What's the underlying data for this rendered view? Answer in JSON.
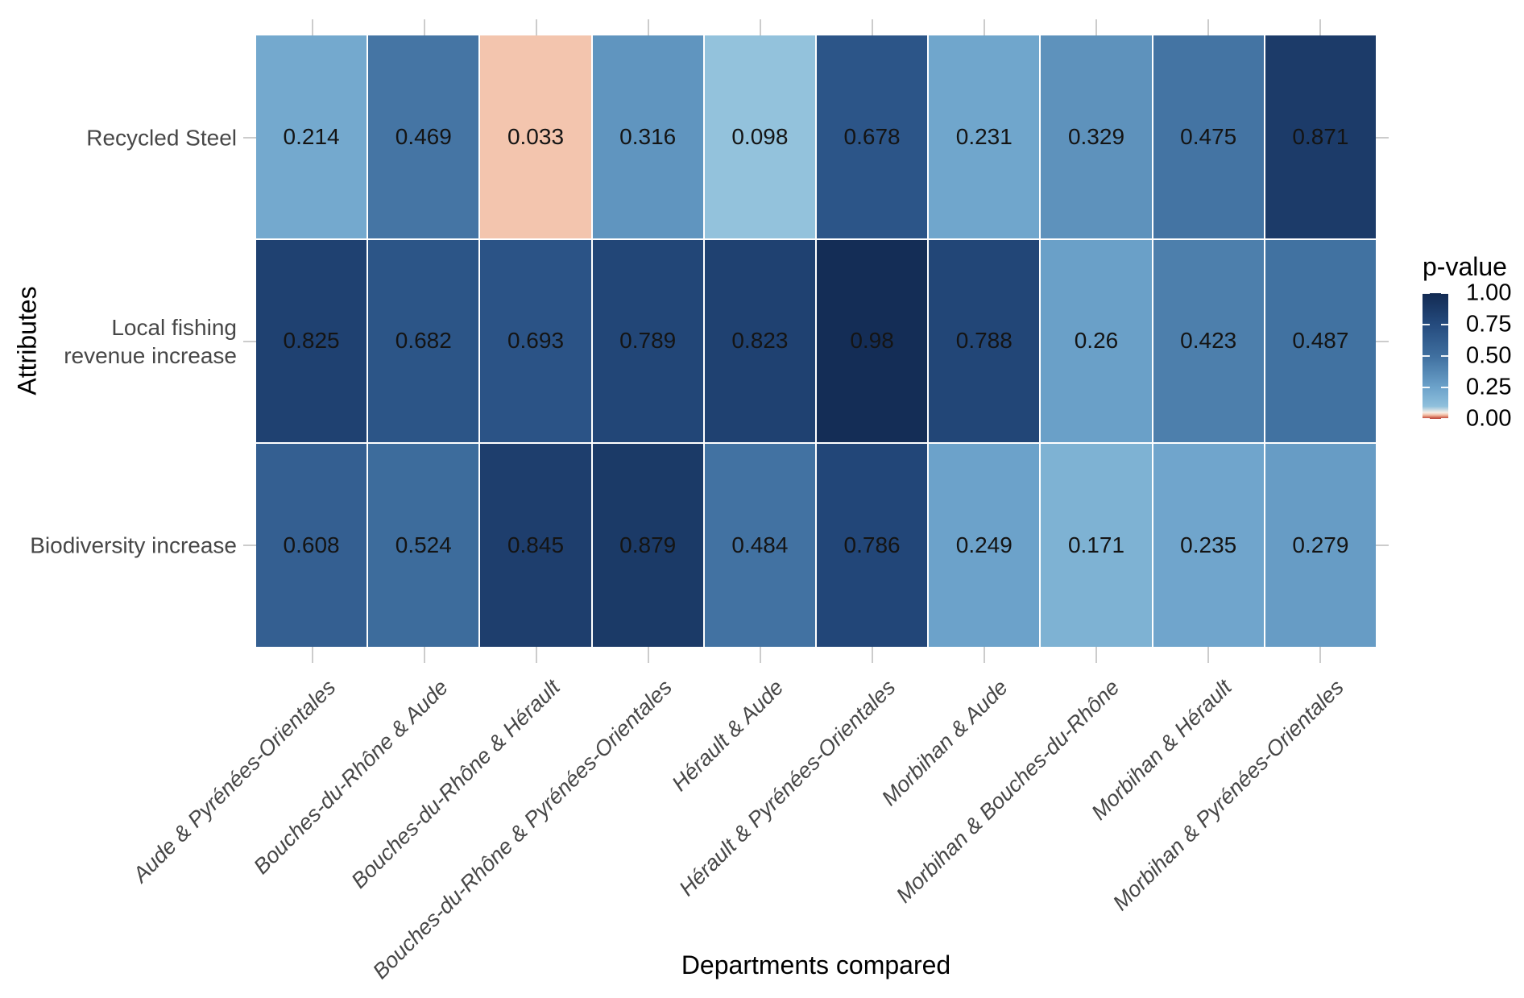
{
  "chart_data": {
    "type": "heatmap",
    "title": "",
    "xlabel": "Departments compared",
    "ylabel": "Attributes",
    "legend_title": "p-value",
    "legend_ticks": [
      "1.00",
      "0.75",
      "0.50",
      "0.25",
      "0.00"
    ],
    "legend_tick_values": [
      1.0,
      0.75,
      0.5,
      0.25,
      0.0
    ],
    "x_categories": [
      "Aude & Pyrénées-Orientales",
      "Bouches-du-Rhône & Aude",
      "Bouches-du-Rhône & Hérault",
      "Bouches-du-Rhône & Pyrénées-Orientales",
      "Hérault & Aude",
      "Hérault & Pyrénées-Orientales",
      "Morbihan & Aude",
      "Morbihan & Bouches-du-Rhône",
      "Morbihan & Hérault",
      "Morbihan & Pyrénées-Orientales"
    ],
    "y_categories": [
      "Recycled Steel",
      "Local fishing\nrevenue increase",
      "Biodiversity increase"
    ],
    "values": [
      [
        0.214,
        0.469,
        0.033,
        0.316,
        0.098,
        0.678,
        0.231,
        0.329,
        0.475,
        0.871
      ],
      [
        0.825,
        0.682,
        0.693,
        0.789,
        0.823,
        0.98,
        0.788,
        0.26,
        0.423,
        0.487
      ],
      [
        0.608,
        0.524,
        0.845,
        0.879,
        0.484,
        0.786,
        0.249,
        0.171,
        0.235,
        0.279
      ]
    ],
    "value_labels": [
      [
        "0.214",
        "0.469",
        "0.033",
        "0.316",
        "0.098",
        "0.678",
        "0.231",
        "0.329",
        "0.475",
        "0.871"
      ],
      [
        "0.825",
        "0.682",
        "0.693",
        "0.789",
        "0.823",
        "0.98",
        "0.788",
        "0.26",
        "0.423",
        "0.487"
      ],
      [
        "0.608",
        "0.524",
        "0.845",
        "0.879",
        "0.484",
        "0.786",
        "0.249",
        "0.171",
        "0.235",
        "0.279"
      ]
    ],
    "value_range": [
      0,
      1
    ],
    "grid": false,
    "legend_position": "right",
    "color_scale": {
      "type": "piecewise-linear",
      "stops": [
        {
          "v": 0.0,
          "color": "#B5392F"
        },
        {
          "v": 0.01,
          "color": "#CE6451"
        },
        {
          "v": 0.03,
          "color": "#F2BDA4"
        },
        {
          "v": 0.05,
          "color": "#F7EFE7"
        },
        {
          "v": 0.1,
          "color": "#8FC0DC"
        },
        {
          "v": 0.25,
          "color": "#6CA2CA"
        },
        {
          "v": 0.5,
          "color": "#3F6F9F"
        },
        {
          "v": 0.75,
          "color": "#254B7E"
        },
        {
          "v": 1.0,
          "color": "#122A52"
        }
      ]
    },
    "style_colors": {
      "axis_tick": "#cccccc",
      "axis_label_text": "#474747",
      "axis_title_text": "#000000",
      "cell_value_text": "#141414",
      "background": "#ffffff"
    }
  }
}
